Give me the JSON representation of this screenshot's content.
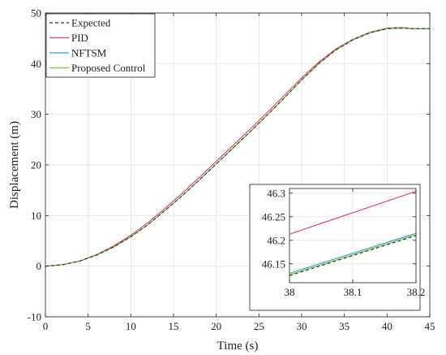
{
  "chart_data": [
    {
      "type": "line",
      "xlabel": "Time (s)",
      "ylabel": "Displacement (m)",
      "xlim": [
        0,
        45
      ],
      "ylim": [
        -10,
        50
      ],
      "xticks": [
        0,
        5,
        10,
        15,
        20,
        25,
        30,
        35,
        40,
        45
      ],
      "yticks": [
        -10,
        0,
        10,
        20,
        30,
        40,
        50
      ],
      "grid": true,
      "legend_position": "top-left",
      "series": [
        {
          "name": "Expected",
          "color": "#333333",
          "dash": true,
          "x": [
            0,
            2,
            4,
            6,
            8,
            10,
            12,
            14,
            16,
            18,
            20,
            22,
            24,
            26,
            28,
            30,
            32,
            34,
            36,
            38,
            40,
            41,
            42,
            43,
            44,
            45
          ],
          "values": [
            0,
            0.3,
            1.0,
            2.2,
            3.8,
            5.8,
            8.2,
            11.0,
            13.9,
            17.0,
            20.2,
            23.4,
            26.6,
            29.9,
            33.3,
            36.8,
            40.0,
            42.7,
            44.7,
            46.1,
            46.9,
            47.0,
            47.0,
            46.9,
            46.9,
            46.9
          ]
        },
        {
          "name": "PID",
          "color": "#d6455d",
          "dash": false,
          "x": [
            0,
            2,
            4,
            6,
            8,
            10,
            12,
            14,
            16,
            18,
            20,
            22,
            24,
            26,
            28,
            30,
            32,
            34,
            36,
            38,
            40,
            41,
            42,
            43,
            44,
            45
          ],
          "values": [
            0,
            0.3,
            1.0,
            2.3,
            4.0,
            6.1,
            8.6,
            11.4,
            14.4,
            17.5,
            20.7,
            23.9,
            27.1,
            30.4,
            33.8,
            37.2,
            40.3,
            42.9,
            44.8,
            46.2,
            47.0,
            47.1,
            47.1,
            46.9,
            46.9,
            46.9
          ]
        },
        {
          "name": "NFTSM",
          "color": "#3aa0d8",
          "dash": false,
          "x": [
            0,
            2,
            4,
            6,
            8,
            10,
            12,
            14,
            16,
            18,
            20,
            22,
            24,
            26,
            28,
            30,
            32,
            34,
            36,
            38,
            40,
            41,
            42,
            43,
            44,
            45
          ],
          "values": [
            0,
            0.3,
            1.0,
            2.2,
            3.8,
            5.8,
            8.2,
            11.0,
            13.9,
            17.0,
            20.2,
            23.4,
            26.6,
            29.9,
            33.3,
            36.8,
            40.0,
            42.7,
            44.7,
            46.1,
            46.9,
            47.0,
            47.0,
            46.9,
            46.9,
            46.9
          ]
        },
        {
          "name": "Proposed Control",
          "color": "#7cc242",
          "dash": false,
          "x": [
            0,
            2,
            4,
            6,
            8,
            10,
            12,
            14,
            16,
            18,
            20,
            22,
            24,
            26,
            28,
            30,
            32,
            34,
            36,
            38,
            40,
            41,
            42,
            43,
            44,
            45
          ],
          "values": [
            0,
            0.3,
            1.0,
            2.2,
            3.8,
            5.8,
            8.2,
            11.0,
            13.9,
            17.0,
            20.2,
            23.4,
            26.6,
            29.9,
            33.3,
            36.8,
            40.0,
            42.7,
            44.7,
            46.1,
            46.9,
            47.0,
            47.0,
            46.9,
            46.9,
            46.9
          ]
        }
      ]
    },
    {
      "type": "line",
      "xlim": [
        38,
        38.2
      ],
      "ylim": [
        46.11,
        46.31
      ],
      "xticks": [
        38,
        38.1,
        38.2
      ],
      "yticks": [
        46.15,
        46.2,
        46.25,
        46.3
      ],
      "grid": true,
      "series": [
        {
          "name": "Expected",
          "color": "#333333",
          "dash": true,
          "x": [
            38,
            38.2
          ],
          "values": [
            46.125,
            46.21
          ]
        },
        {
          "name": "PID",
          "color": "#d6455d",
          "dash": false,
          "x": [
            38,
            38.2
          ],
          "values": [
            46.213,
            46.304
          ]
        },
        {
          "name": "NFTSM",
          "color": "#3aa0d8",
          "dash": false,
          "x": [
            38,
            38.2
          ],
          "values": [
            46.13,
            46.215
          ]
        },
        {
          "name": "Proposed Control",
          "color": "#7cc242",
          "dash": false,
          "x": [
            38,
            38.2
          ],
          "values": [
            46.127,
            46.212
          ]
        }
      ]
    }
  ]
}
